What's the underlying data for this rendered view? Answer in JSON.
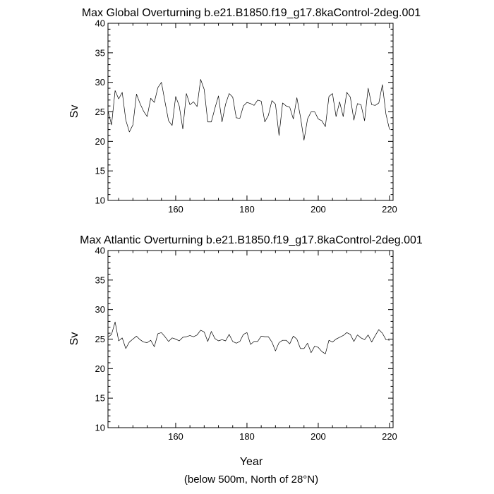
{
  "chart_data": [
    {
      "type": "line",
      "title": "Max Global Overturning b.e21.B1850.f19_g17.8kaControl-2deg.001",
      "xlabel": "",
      "ylabel": "Sv",
      "xlim": [
        141,
        221
      ],
      "ylim": [
        10,
        40
      ],
      "xticks": [
        160,
        180,
        200,
        220
      ],
      "yticks": [
        10,
        15,
        20,
        25,
        30,
        35,
        40
      ],
      "grid": false,
      "x_start": 141,
      "x_step": 1,
      "values": [
        25.2,
        22.8,
        28.6,
        27.2,
        28.3,
        23.6,
        21.6,
        22.8,
        28.0,
        26.4,
        25.1,
        24.2,
        27.3,
        26.6,
        29.1,
        30.0,
        26.7,
        23.5,
        22.7,
        27.6,
        26.0,
        22.1,
        28.1,
        26.2,
        26.7,
        25.9,
        30.5,
        28.8,
        23.3,
        23.3,
        25.6,
        27.7,
        23.3,
        26.3,
        28.1,
        27.5,
        24.0,
        23.9,
        26.0,
        26.6,
        26.4,
        26.1,
        27.0,
        26.8,
        23.3,
        24.4,
        26.9,
        26.3,
        21.0,
        26.5,
        26.0,
        25.8,
        23.8,
        27.4,
        24.2,
        20.2,
        23.8,
        25.0,
        25.0,
        23.8,
        23.5,
        22.5,
        27.6,
        28.1,
        24.2,
        26.7,
        24.2,
        28.3,
        27.5,
        23.6,
        26.4,
        26.2,
        23.5,
        29.0,
        26.2,
        26.1,
        26.5,
        29.6,
        24.6,
        22.0
      ]
    },
    {
      "type": "line",
      "title": "Max Atlantic Overturning b.e21.B1850.f19_g17.8kaControl-2deg.001",
      "xlabel": "Year",
      "ylabel": "Sv",
      "xlim": [
        141,
        221
      ],
      "ylim": [
        10,
        40
      ],
      "xticks": [
        160,
        180,
        200,
        220
      ],
      "yticks": [
        10,
        15,
        20,
        25,
        30,
        35,
        40
      ],
      "grid": false,
      "x_start": 141,
      "x_step": 1,
      "values": [
        25.3,
        25.8,
        27.9,
        24.7,
        25.2,
        23.4,
        24.5,
        25.0,
        25.5,
        24.9,
        24.5,
        24.4,
        24.8,
        23.7,
        25.9,
        26.1,
        25.4,
        24.6,
        25.2,
        25.0,
        24.7,
        25.3,
        25.4,
        25.6,
        25.4,
        25.7,
        26.5,
        26.2,
        24.6,
        26.3,
        25.1,
        24.7,
        24.9,
        24.7,
        25.8,
        24.6,
        24.3,
        24.6,
        25.8,
        26.1,
        24.1,
        24.6,
        24.6,
        25.5,
        25.4,
        25.4,
        24.5,
        23.0,
        24.4,
        24.8,
        24.8,
        24.2,
        25.5,
        25.0,
        23.4,
        23.4,
        24.3,
        22.7,
        23.8,
        23.6,
        22.9,
        22.5,
        24.8,
        24.5,
        25.0,
        25.3,
        25.6,
        26.1,
        25.8,
        24.6,
        25.7,
        25.2,
        24.9,
        25.7,
        24.5,
        25.6,
        26.6,
        26.0,
        24.9,
        24.8
      ]
    }
  ],
  "footnote": "(below 500m, North of 28°N)"
}
